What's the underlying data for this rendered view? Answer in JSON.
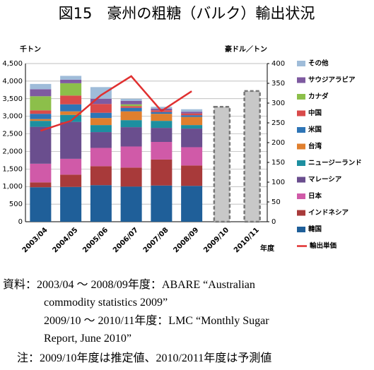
{
  "chart_data": {
    "type": "bar",
    "title": "図15　豪州の粗糖（バルク）輸出状況",
    "y_label": "千トン",
    "y2_label": "豪ドル／トン",
    "x_label": "年度",
    "categories": [
      "2003/04",
      "2004/05",
      "2005/06",
      "2006/07",
      "2007/08",
      "2008/09",
      "2009/10",
      "2010/11"
    ],
    "stacked": true,
    "series": [
      {
        "name": "韓国",
        "color": "#1f5f99",
        "values": [
          980,
          990,
          1040,
          1000,
          1030,
          1020,
          null,
          null
        ]
      },
      {
        "name": "インドネシア",
        "color": "#a83a3a",
        "values": [
          140,
          350,
          540,
          540,
          740,
          580,
          null,
          null
        ]
      },
      {
        "name": "日本",
        "color": "#d05aa8",
        "values": [
          530,
          450,
          520,
          600,
          500,
          520,
          null,
          null
        ]
      },
      {
        "name": "マレーシア",
        "color": "#6a4e8e",
        "values": [
          1050,
          1050,
          450,
          550,
          400,
          530,
          null,
          null
        ]
      },
      {
        "name": "ニュージーランド",
        "color": "#1d8fa0",
        "values": [
          170,
          200,
          200,
          200,
          200,
          100,
          null,
          null
        ]
      },
      {
        "name": "台湾",
        "color": "#e07f2e",
        "values": [
          50,
          100,
          200,
          250,
          200,
          230,
          null,
          null
        ]
      },
      {
        "name": "米国",
        "color": "#2e75b6",
        "values": [
          150,
          200,
          150,
          100,
          50,
          50,
          null,
          null
        ]
      },
      {
        "name": "中国",
        "color": "#d94a4a",
        "values": [
          100,
          250,
          250,
          50,
          50,
          50,
          null,
          null
        ]
      },
      {
        "name": "カナダ",
        "color": "#8cbf4a",
        "values": [
          400,
          350,
          0,
          50,
          0,
          0,
          null,
          null
        ]
      },
      {
        "name": "サウジアラビア",
        "color": "#7e5aa0",
        "values": [
          200,
          100,
          150,
          100,
          50,
          50,
          null,
          null
        ]
      },
      {
        "name": "その他",
        "color": "#9fbcd9",
        "values": [
          150,
          110,
          330,
          60,
          50,
          70,
          null,
          null
        ]
      },
      {
        "name": "輸出単価",
        "color": "#e03030",
        "type": "line",
        "axis": "y2",
        "values": [
          230,
          255,
          320,
          368,
          280,
          330,
          null,
          null
        ]
      }
    ],
    "forecast": {
      "color": "#c8c8c8",
      "values": [
        null,
        null,
        null,
        null,
        null,
        null,
        3270,
        3720
      ]
    },
    "ylim": [
      0,
      4500
    ],
    "yticks": [
      0,
      500,
      {
        "value": 1000,
        "label": "1,000"
      },
      {
        "value": 1500,
        "label": "1,500"
      },
      {
        "value": 2000,
        "label": "2,000"
      },
      {
        "value": 2500,
        "label": "2,500"
      },
      {
        "value": 3000,
        "label": "3,000"
      },
      {
        "value": 3500,
        "label": "3,500"
      },
      {
        "value": 4000,
        "label": "4,000"
      },
      {
        "value": 4500,
        "label": "4,500"
      }
    ],
    "y2lim": [
      0,
      400
    ],
    "y2ticks": [
      0,
      50,
      100,
      150,
      200,
      250,
      300,
      350,
      400
    ],
    "grid": true,
    "legend": "right",
    "notes": [
      "資料：2003/04 ～ 2008/09年度：ABARE “Australian",
      "commodity statistics 2009”",
      "2009/10 ～ 2010/11年度：LMC “Monthly Sugar",
      "Report, June 2010”",
      "注：2009/10年度は推定値、2010/2011年度は予測値"
    ]
  }
}
